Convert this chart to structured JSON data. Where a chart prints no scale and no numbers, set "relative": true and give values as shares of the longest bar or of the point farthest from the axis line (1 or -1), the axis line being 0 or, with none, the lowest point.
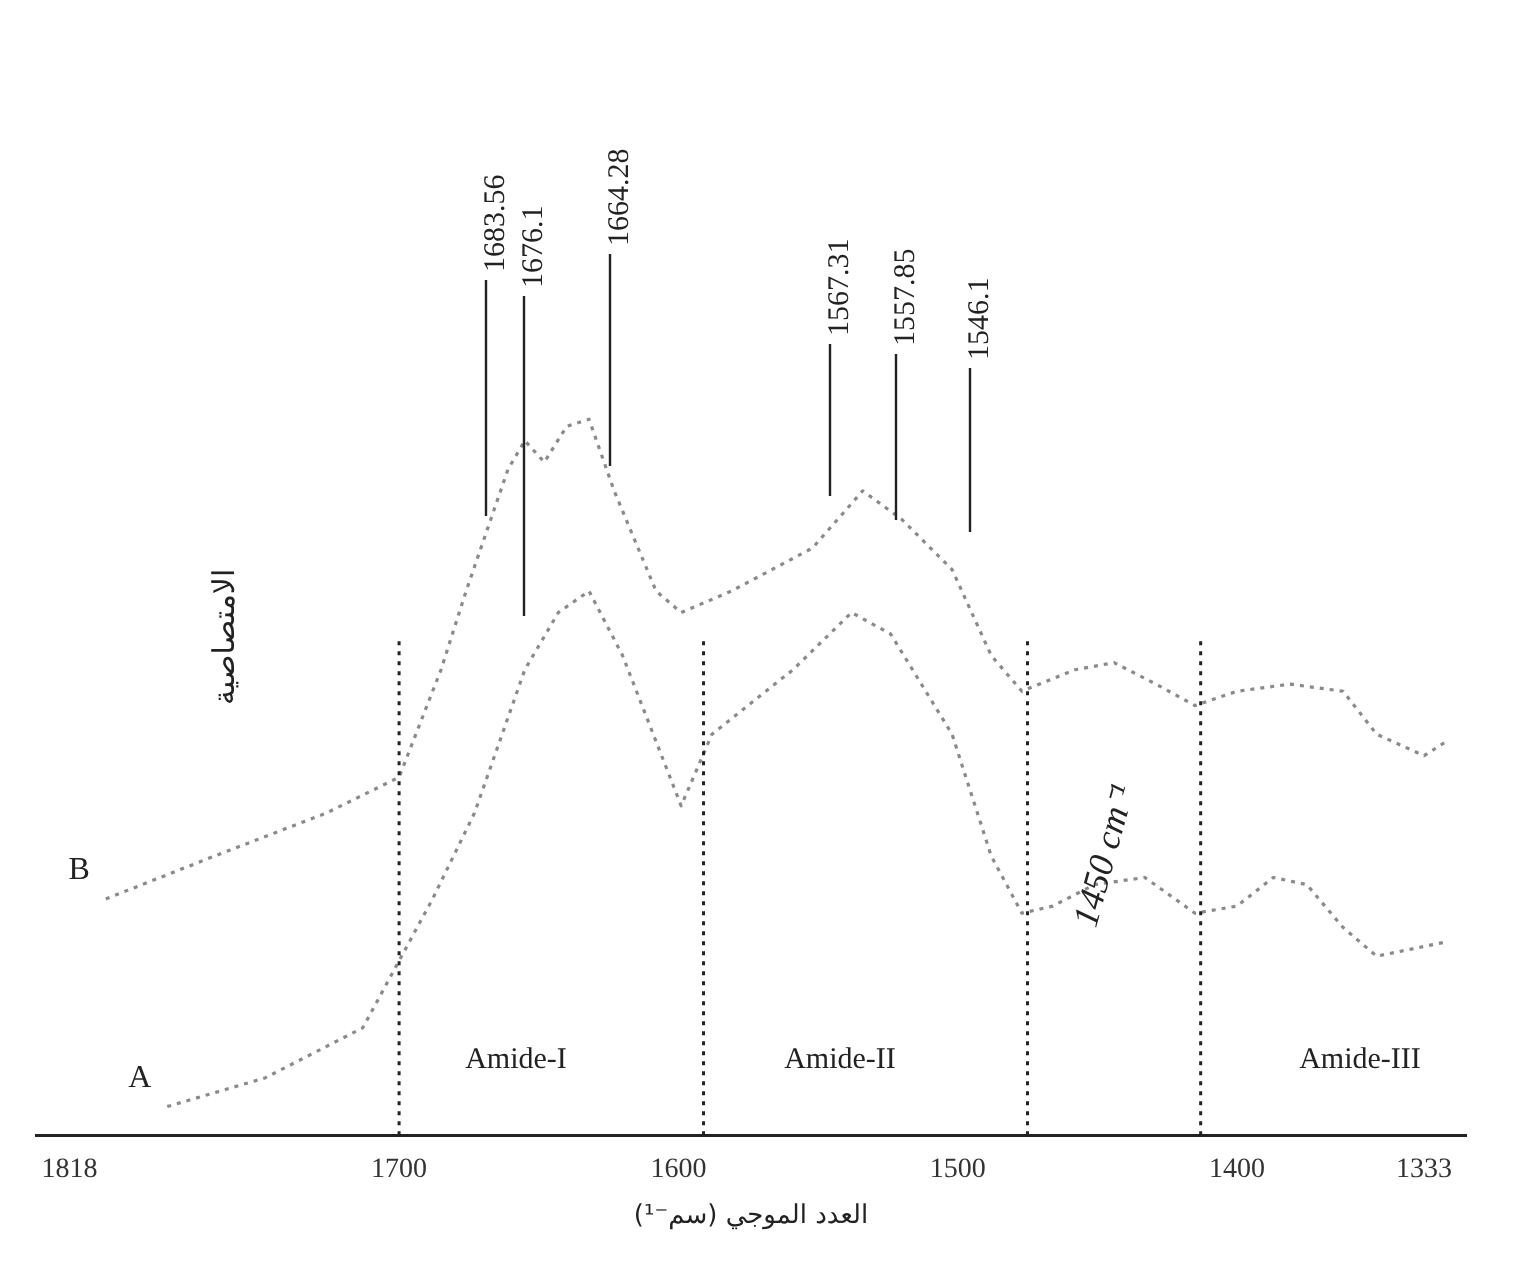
{
  "chart_data": {
    "type": "line",
    "relative": true,
    "xlabel": "العدد الموجي (سم⁻¹)",
    "ylabel": "الامتصاصية",
    "xlim": [
      1830,
      1318
    ],
    "xticks": [
      1818,
      1700,
      1600,
      1500,
      1400,
      1333
    ],
    "grid": false,
    "legend": false,
    "line_style": "dotted",
    "marker": "none",
    "series": [
      {
        "name": "B",
        "color": "#8a8a8a",
        "x": [
          1805,
          1766,
          1726,
          1700,
          1685,
          1676,
          1661,
          1655,
          1648,
          1640,
          1632,
          1623,
          1608,
          1599,
          1581,
          1552,
          1534,
          1520,
          1502,
          1488,
          1477,
          1458,
          1444,
          1429,
          1415,
          1400,
          1381,
          1362,
          1350,
          1333,
          1325
        ],
        "values": [
          0.33,
          0.39,
          0.45,
          0.5,
          0.65,
          0.76,
          0.93,
          0.97,
          0.94,
          0.99,
          1,
          0.9,
          0.76,
          0.73,
          0.76,
          0.82,
          0.9,
          0.86,
          0.79,
          0.67,
          0.62,
          0.65,
          0.66,
          0.63,
          0.6,
          0.62,
          0.63,
          0.62,
          0.56,
          0.53,
          0.55
        ]
      },
      {
        "name": "A",
        "color": "#8a8a8a",
        "x": [
          1783,
          1748,
          1713,
          1688,
          1673,
          1655,
          1643,
          1632,
          1620,
          1599,
          1588,
          1559,
          1538,
          1524,
          1502,
          1488,
          1477,
          1466,
          1451,
          1433,
          1415,
          1400,
          1387,
          1375,
          1362,
          1350,
          1325
        ],
        "values": [
          0.04,
          0.08,
          0.15,
          0.33,
          0.45,
          0.65,
          0.73,
          0.76,
          0.67,
          0.46,
          0.56,
          0.65,
          0.73,
          0.7,
          0.56,
          0.39,
          0.31,
          0.32,
          0.35,
          0.36,
          0.31,
          0.32,
          0.36,
          0.35,
          0.29,
          0.25,
          0.27
        ]
      }
    ],
    "ref_lines": [
      {
        "axis": "x",
        "value": 1700,
        "line_style": "dotted",
        "color": "#222222"
      },
      {
        "axis": "x",
        "value": 1591,
        "line_style": "dotted",
        "color": "#222222"
      },
      {
        "axis": "x",
        "value": 1475,
        "line_style": "dotted",
        "color": "#222222"
      },
      {
        "axis": "x",
        "value": 1413,
        "line_style": "dotted",
        "color": "#222222"
      }
    ],
    "annotations": [
      "Amide-I",
      "Amide-II",
      "1450 cm⁻¹",
      "Amide-III",
      "1683.56",
      "1676.1",
      "1664.28",
      "1567.31",
      "1557.85",
      "1546.1"
    ]
  }
}
